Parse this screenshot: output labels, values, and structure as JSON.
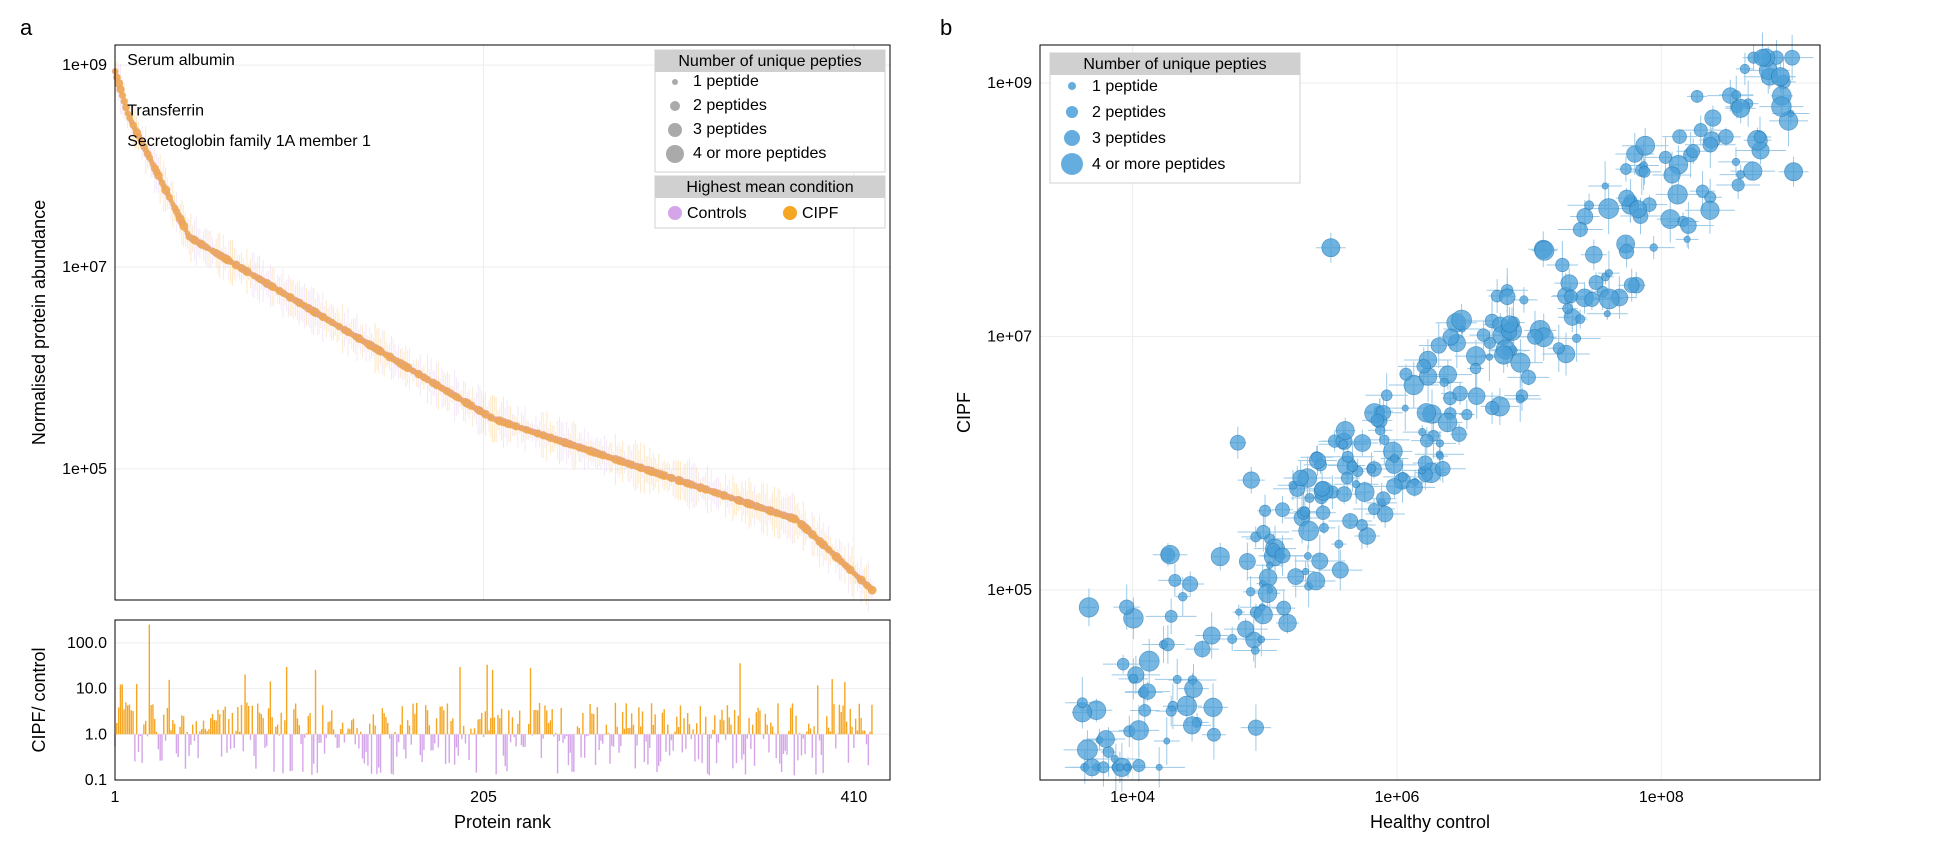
{
  "panel_a": {
    "label": "a",
    "main": {
      "type": "scatter",
      "xlabel": "",
      "ylabel": "Normalised protein abundance",
      "xlim": [
        1,
        430
      ],
      "ylim_log10": [
        3.7,
        9.2
      ],
      "xticks": [
        1,
        205,
        410
      ],
      "yticks_log10": [
        5,
        7,
        9
      ],
      "ytick_labels": [
        "1e+05",
        "1e+07",
        "1e+09"
      ],
      "annotations": [
        {
          "x": 5,
          "y_log10": 9.0,
          "text": "Serum albumin"
        },
        {
          "x": 5,
          "y_log10": 8.5,
          "text": "Transferrin"
        },
        {
          "x": 5,
          "y_log10": 8.2,
          "text": "Secretoglobin family 1A member 1"
        }
      ],
      "legend_peptides": {
        "title": "Number of unique pepties",
        "items": [
          "1 peptide",
          "2 peptides",
          "3 peptides",
          "4 or more peptides"
        ],
        "sizes": [
          3,
          5,
          7,
          9
        ],
        "color": "#aaaaaa"
      },
      "legend_condition": {
        "title": "Highest mean condition",
        "items": [
          {
            "label": "Controls",
            "color": "#d4a5e8"
          },
          {
            "label": "CIPF",
            "color": "#f5a623"
          }
        ]
      },
      "colors": {
        "controls": "#d4a5e8",
        "cipf": "#f5a623"
      },
      "background": "#ffffff",
      "grid_color": "#eeeeee"
    },
    "bottom": {
      "type": "bar",
      "ylabel": "CIPF/ control",
      "xlabel": "Protein rank",
      "xlim": [
        1,
        430
      ],
      "ylim_log10": [
        -1,
        2.5
      ],
      "yticks_log10": [
        -1,
        0,
        1,
        2
      ],
      "ytick_labels": [
        "0.1",
        "1.0",
        "10.0",
        "100.0"
      ],
      "xticks": [
        1,
        205,
        410
      ],
      "colors": {
        "up": "#f5a623",
        "down": "#d4a5e8"
      }
    }
  },
  "panel_b": {
    "label": "b",
    "type": "scatter",
    "xlabel": "Healthy control",
    "ylabel": "CIPF",
    "xlim_log10": [
      3.3,
      9.2
    ],
    "ylim_log10": [
      3.5,
      9.3
    ],
    "xticks_log10": [
      4,
      6,
      8
    ],
    "xtick_labels": [
      "1e+04",
      "1e+06",
      "1e+08"
    ],
    "yticks_log10": [
      5,
      7,
      9
    ],
    "ytick_labels": [
      "1e+05",
      "1e+07",
      "1e+09"
    ],
    "legend": {
      "title": "Number of unique pepties",
      "items": [
        "1 peptide",
        "2 peptides",
        "3 peptides",
        "4 or more peptides"
      ],
      "sizes": [
        4,
        6,
        8,
        11
      ],
      "color": "#4a9fd8"
    },
    "point_color": "#4a9fd8",
    "point_stroke": "#2a7fb8",
    "error_color": "#4a9fd8",
    "background": "#ffffff",
    "grid_color": "#eeeeee"
  }
}
